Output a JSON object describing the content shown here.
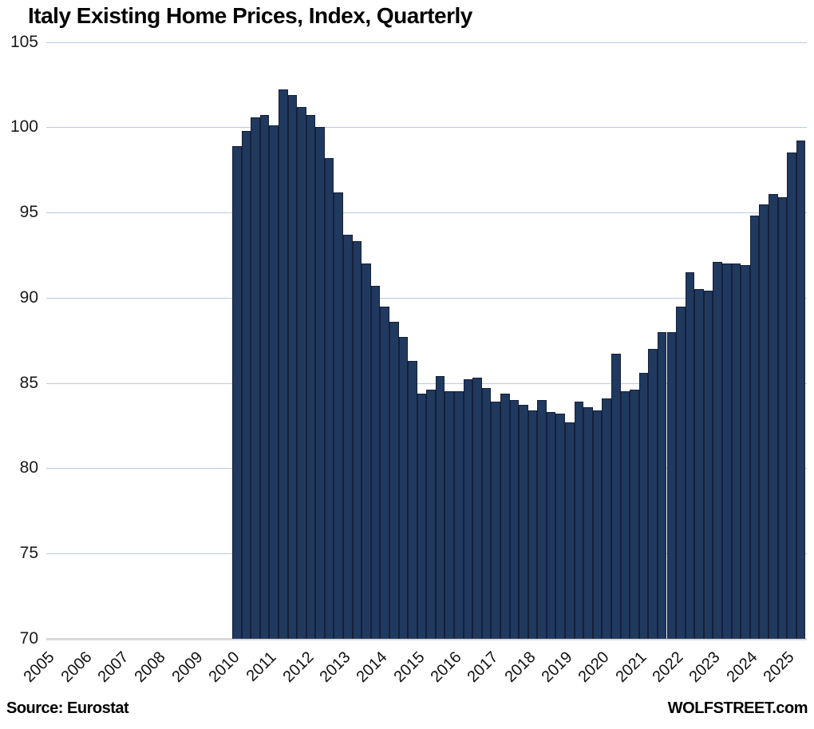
{
  "title": "Italy Existing Home Prices, Index, Quarterly",
  "footer": {
    "source": "Source: Eurostat",
    "brand": "WOLFSTREET.com"
  },
  "colors": {
    "bar_fill": "#20395f",
    "bar_border": "#16203a",
    "gridline": "#b8c9e4",
    "axis_line": "#d9d9d9",
    "text": "#000000"
  },
  "chart_data": {
    "type": "bar",
    "title": "Italy Existing Home Prices, Index, Quarterly",
    "xlabel": "",
    "ylabel": "",
    "ylim": [
      70,
      105
    ],
    "yticks": [
      70,
      75,
      80,
      85,
      90,
      95,
      100,
      105
    ],
    "grid": true,
    "legend": "none",
    "x_axis_year_labels": [
      "2005",
      "2006",
      "2007",
      "2008",
      "2009",
      "2010",
      "2011",
      "2012",
      "2013",
      "2014",
      "2015",
      "2016",
      "2017",
      "2018",
      "2019",
      "2020",
      "2021",
      "2022",
      "2023",
      "2024",
      "2025"
    ],
    "data_start": "2010 Q1",
    "data_end": "2025 Q2",
    "x": [
      "2010 Q1",
      "2010 Q2",
      "2010 Q3",
      "2010 Q4",
      "2011 Q1",
      "2011 Q2",
      "2011 Q3",
      "2011 Q4",
      "2012 Q1",
      "2012 Q2",
      "2012 Q3",
      "2012 Q4",
      "2013 Q1",
      "2013 Q2",
      "2013 Q3",
      "2013 Q4",
      "2014 Q1",
      "2014 Q2",
      "2014 Q3",
      "2014 Q4",
      "2015 Q1",
      "2015 Q2",
      "2015 Q3",
      "2015 Q4",
      "2016 Q1",
      "2016 Q2",
      "2016 Q3",
      "2016 Q4",
      "2017 Q1",
      "2017 Q2",
      "2017 Q3",
      "2017 Q4",
      "2018 Q1",
      "2018 Q2",
      "2018 Q3",
      "2018 Q4",
      "2019 Q1",
      "2019 Q2",
      "2019 Q3",
      "2019 Q4",
      "2020 Q1",
      "2020 Q2",
      "2020 Q3",
      "2020 Q4",
      "2021 Q1",
      "2021 Q2",
      "2021 Q3",
      "2021 Q4",
      "2022 Q1",
      "2022 Q2",
      "2022 Q3",
      "2022 Q4",
      "2023 Q1",
      "2023 Q2",
      "2023 Q3",
      "2023 Q4",
      "2024 Q1",
      "2024 Q2",
      "2024 Q3",
      "2024 Q4",
      "2025 Q1",
      "2025 Q2"
    ],
    "values": [
      98.9,
      99.8,
      100.6,
      100.7,
      100.1,
      102.2,
      101.9,
      101.2,
      100.7,
      100.0,
      98.2,
      96.2,
      93.7,
      93.3,
      92.0,
      90.7,
      89.5,
      88.6,
      87.7,
      86.3,
      84.4,
      84.6,
      85.4,
      84.5,
      84.5,
      85.2,
      85.3,
      84.7,
      83.9,
      84.4,
      84.0,
      83.7,
      83.4,
      84.0,
      83.3,
      83.2,
      82.7,
      83.9,
      83.6,
      83.4,
      84.1,
      86.7,
      84.5,
      84.6,
      85.6,
      87.0,
      88.0,
      88.0,
      89.5,
      91.5,
      90.5,
      90.4,
      92.1,
      92.0,
      92.0,
      91.9,
      94.8,
      95.5,
      96.1,
      95.9,
      98.5,
      99.2
    ]
  }
}
